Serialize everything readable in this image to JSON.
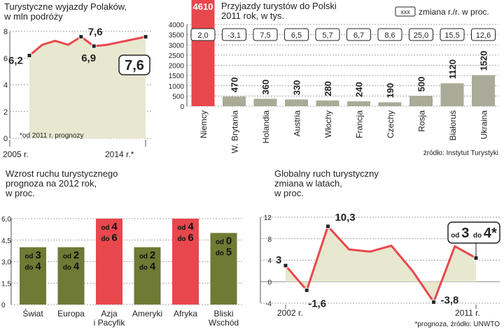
{
  "colors": {
    "red": "#e8474d",
    "olive": "#6f7a35",
    "pale": "#e7e8cf",
    "pale_bar": "#eeeed4",
    "gray": "#a9ab98",
    "grid": "#888888",
    "text": "#222222"
  },
  "chart_data": [
    {
      "type": "line",
      "title_lines": [
        "Turystyczne wyjazdy Polaków,",
        "w mln podróży"
      ],
      "x_start": "2005 r.",
      "x_end": "2014 r.*",
      "x": [
        2005,
        2006,
        2007,
        2008,
        2009,
        2010,
        2011,
        2012,
        2013,
        2014
      ],
      "values": [
        6.2,
        7.0,
        7.3,
        7.0,
        7.6,
        6.9,
        7.0,
        7.2,
        7.4,
        7.6
      ],
      "yticks": [
        0,
        2,
        4,
        6,
        8
      ],
      "ylim": [
        0,
        8
      ],
      "labels": [
        {
          "idx": 0,
          "text": "6,2"
        },
        {
          "idx": 4,
          "text": "7,6"
        },
        {
          "idx": 5,
          "text": "6,9"
        }
      ],
      "big_label": "7,6",
      "footnote": "*od 2011 r. prognozy"
    },
    {
      "type": "bar",
      "title_lines": [
        "Przyjazdy turystów do Polski",
        "2011 rok, w tys."
      ],
      "legend_key": "xxx",
      "legend_text": "zmiana r./r. w proc.",
      "categories": [
        "Niemcy",
        "W. Brytania",
        "Holandia",
        "Austria",
        "Włochy",
        "Francja",
        "Czechy",
        "Rosja",
        "Białoruś",
        "Ukraina"
      ],
      "values": [
        4610,
        470,
        360,
        330,
        280,
        240,
        190,
        500,
        1120,
        1520
      ],
      "value_labels": [
        "4610",
        "470",
        "360",
        "330",
        "280",
        "240",
        "190",
        "500",
        "1120",
        "1520"
      ],
      "changes": [
        "2,0",
        "-3,1",
        "7,5",
        "6,5",
        "5,7",
        "6,7",
        "8,6",
        "25,0",
        "15,5",
        "12,6"
      ],
      "yticks": [
        0,
        500,
        1000,
        1500,
        2000,
        2500,
        3000,
        3500,
        4000
      ],
      "ylim": [
        0,
        4000
      ],
      "source": "źródło: Instytut Turystyki"
    },
    {
      "type": "bar",
      "title_lines": [
        "Wzrost ruchu turystycznego",
        "prognoza na 2012 rok,",
        "w proc."
      ],
      "categories": [
        [
          "Świat"
        ],
        [
          "Europa"
        ],
        [
          "Azja",
          "i Pacyfik"
        ],
        [
          "Ameryki"
        ],
        [
          "Afryka"
        ],
        [
          "Bliski",
          "Wschód"
        ]
      ],
      "low": [
        3,
        2,
        4,
        2,
        4,
        0
      ],
      "high": [
        4,
        4,
        6,
        4,
        6,
        5
      ],
      "yticks": [
        0,
        1.5,
        3.0,
        4.5,
        6.0
      ],
      "ytick_labels": [
        "0",
        "1,5",
        "3,0",
        "4,5",
        "6,0"
      ],
      "ylim": [
        0,
        6
      ]
    },
    {
      "type": "line",
      "title_lines": [
        "Globalny ruch turystyczny",
        "zmiana w latach,",
        "w proc."
      ],
      "x": [
        2002,
        2003,
        2004,
        2005,
        2006,
        2007,
        2008,
        2009,
        2010,
        2011
      ],
      "values": [
        3,
        -1.6,
        10.3,
        6,
        5.6,
        6.7,
        2,
        -3.8,
        6.6,
        4.4
      ],
      "yticks": [
        -4,
        0,
        4,
        8,
        12
      ],
      "ylim": [
        -4,
        12
      ],
      "labels": [
        {
          "idx": 0,
          "text": "3"
        },
        {
          "idx": 1,
          "text": "-1,6"
        },
        {
          "idx": 2,
          "text": "10,3"
        },
        {
          "idx": 7,
          "text": "-3,8"
        }
      ],
      "x_start": "2002 r.",
      "x_end": "2011 r.",
      "forecast": {
        "od": "od",
        "low": "3",
        "do": "do",
        "high": "4*"
      },
      "source": "*prognoza, źródło: UNWTO"
    }
  ]
}
